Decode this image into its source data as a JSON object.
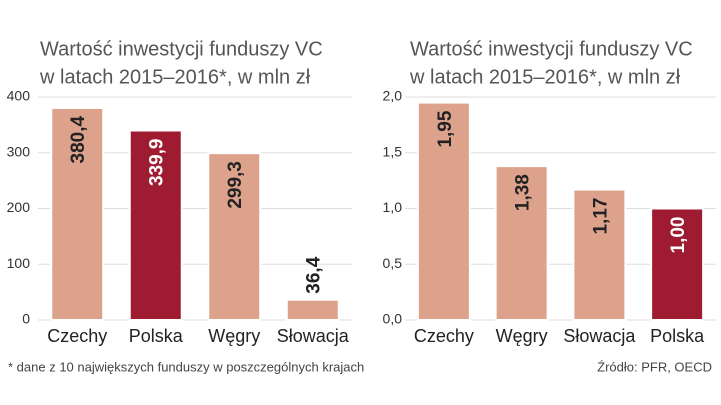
{
  "chart_data": [
    {
      "type": "bar",
      "title": [
        "Wartość inwestycji funduszy VC",
        "w latach 2015–2016*, w mln zł"
      ],
      "categories": [
        "Czechy",
        "Polska",
        "Węgry",
        "Słowacja"
      ],
      "values": [
        380.4,
        339.9,
        299.3,
        36.4
      ],
      "value_labels": [
        "380,4",
        "339,9",
        "299,3",
        "36,4"
      ],
      "colors": [
        "#dca28c",
        "#9e1b32",
        "#dca28c",
        "#dca28c"
      ],
      "ylim": [
        0,
        400
      ],
      "yticks": [
        0,
        100,
        200,
        300,
        400
      ],
      "grid": true
    },
    {
      "type": "bar",
      "title": [
        "Wartość inwestycji funduszy VC",
        "w latach 2015–2016*, w mln zł"
      ],
      "categories": [
        "Czechy",
        "Węgry",
        "Słowacja",
        "Polska"
      ],
      "values": [
        1.95,
        1.38,
        1.17,
        1.0
      ],
      "value_labels": [
        "1,95",
        "1,38",
        "1,17",
        "1,00"
      ],
      "colors": [
        "#dca28c",
        "#dca28c",
        "#dca28c",
        "#9e1b32"
      ],
      "ylim": [
        0,
        2
      ],
      "yticks": [
        {
          "value": 0,
          "label": "0,0"
        },
        {
          "value": 0.5,
          "label": "0,5"
        },
        {
          "value": 1,
          "label": "1,0"
        },
        {
          "value": 1.5,
          "label": "1,5"
        },
        {
          "value": 2,
          "label": "2,0"
        }
      ],
      "grid": true
    }
  ],
  "footnote": "* dane z 10 największych funduszy w poszczególnych krajach",
  "source": "Źródło: PFR, OECD"
}
